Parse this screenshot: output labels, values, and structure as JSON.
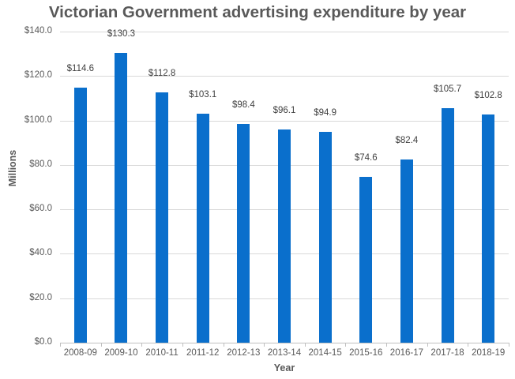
{
  "chart_data": {
    "type": "bar",
    "title": "Victorian Government advertising expenditure by year",
    "xlabel": "Year",
    "ylabel": "Millions",
    "categories": [
      "2008-09",
      "2009-10",
      "2010-11",
      "2011-12",
      "2012-13",
      "2013-14",
      "2014-15",
      "2015-16",
      "2016-17",
      "2017-18",
      "2018-19"
    ],
    "values": [
      114.6,
      130.3,
      112.8,
      103.1,
      98.4,
      96.1,
      94.9,
      74.6,
      82.4,
      105.7,
      102.8
    ],
    "data_labels": [
      "$114.6",
      "$130.3",
      "$112.8",
      "$103.1",
      "$98.4",
      "$96.1",
      "$94.9",
      "$74.6",
      "$82.4",
      "$105.7",
      "$102.8"
    ],
    "ylim": [
      0,
      140
    ],
    "yticks": [
      0,
      20,
      40,
      60,
      80,
      100,
      120,
      140
    ],
    "ytick_labels": [
      "$0.0",
      "$20.0",
      "$40.0",
      "$60.0",
      "$80.0",
      "$100.0",
      "$120.0",
      "$140.0"
    ],
    "grid": true,
    "legend": "none",
    "bar_color": "#0a6fcc"
  }
}
